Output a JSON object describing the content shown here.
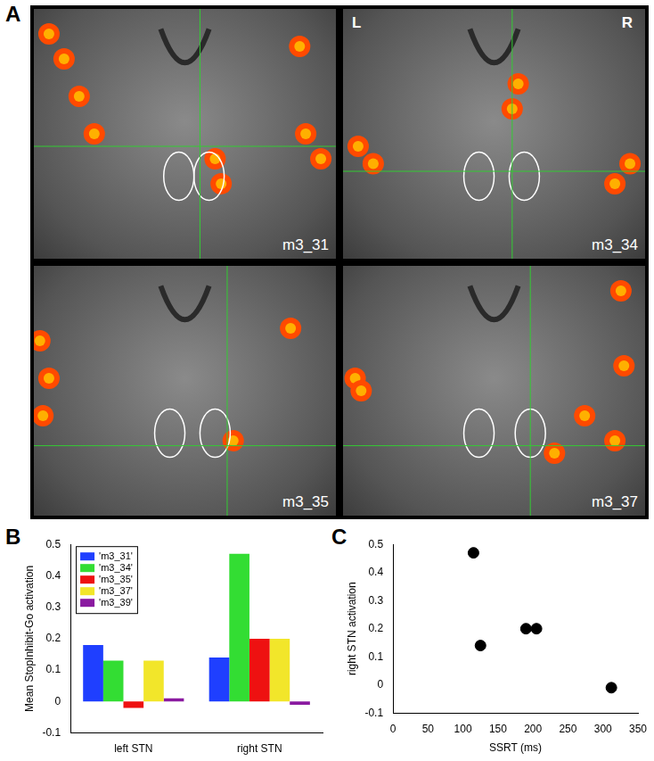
{
  "images": {
    "panel_label": "A",
    "orientation_labels": [
      "L",
      "R"
    ],
    "slices": [
      "m3_31",
      "m3_34",
      "m3_35",
      "m3_37"
    ]
  },
  "chart_data": [
    {
      "type": "bar",
      "panel_label": "B",
      "y_label": "Mean StopInhibit-Go activation",
      "categories": [
        "left STN",
        "right STN"
      ],
      "series": [
        {
          "name": "'m3_31'",
          "color": "#1f3fff",
          "values": [
            0.18,
            0.14
          ]
        },
        {
          "name": "'m3_34'",
          "color": "#33dd33",
          "values": [
            0.13,
            0.47
          ]
        },
        {
          "name": "'m3_35'",
          "color": "#ee1111",
          "values": [
            -0.02,
            0.2
          ]
        },
        {
          "name": "'m3_37'",
          "color": "#f2e62a",
          "values": [
            0.13,
            0.2
          ]
        },
        {
          "name": "'m3_39'",
          "color": "#8a1aa0",
          "values": [
            0.01,
            -0.01
          ]
        }
      ],
      "ylim": [
        -0.1,
        0.5
      ],
      "yticks": [
        -0.1,
        0,
        0.1,
        0.2,
        0.3,
        0.4,
        0.5
      ],
      "grid": false,
      "legend": "top-left"
    },
    {
      "type": "scatter",
      "panel_label": "C",
      "x_label": "SSRT (ms)",
      "y_label": "right STN activation",
      "x": [
        115,
        125,
        190,
        205,
        312
      ],
      "values": [
        0.47,
        0.14,
        0.2,
        0.2,
        -0.01
      ],
      "color": "#000000",
      "marker": "circle",
      "xlim": [
        0,
        350
      ],
      "xticks": [
        0,
        50,
        100,
        150,
        200,
        250,
        300,
        350
      ],
      "ylim": [
        -0.1,
        0.5
      ],
      "yticks": [
        -0.1,
        0,
        0.1,
        0.2,
        0.3,
        0.4,
        0.5
      ],
      "grid": false
    }
  ]
}
